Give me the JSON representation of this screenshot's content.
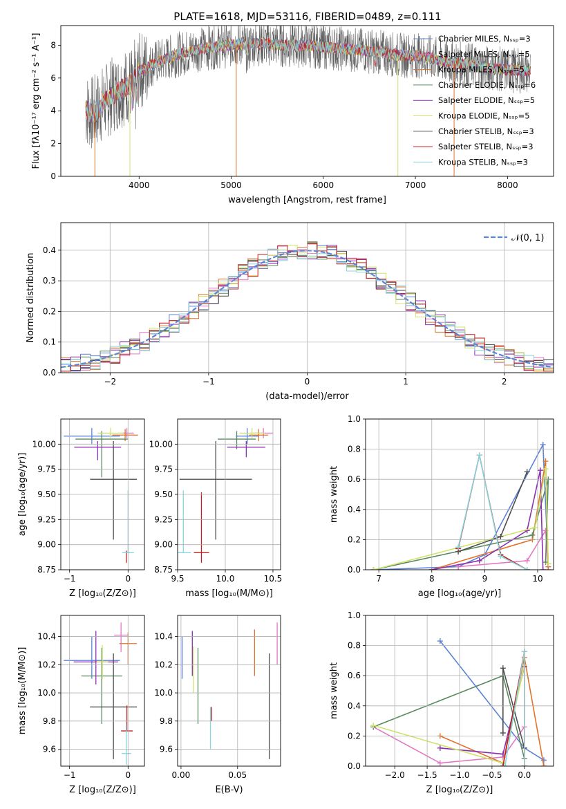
{
  "figure": {
    "title": "PLATE=1618, MJD=53116, FIBERID=0489, z=0.111"
  },
  "colors": [
    "#5b83d6",
    "#e377c2",
    "#e2722a",
    "#5a8a5f",
    "#8c2fb0",
    "#cfe36a",
    "#4d4d4d",
    "#c01f1f",
    "#86d6dd"
  ],
  "chart_data": [
    {
      "id": "spectrum",
      "type": "line",
      "xlabel": "wavelength [Angstrom, rest frame]",
      "ylabel": "Flux [f_λ 10^-17 erg cm^-2 s^-1 A^-1]",
      "xlim": [
        3150,
        8500
      ],
      "ylim": [
        0,
        9.2
      ],
      "xticks": [
        4000,
        5000,
        6000,
        7000,
        8000
      ],
      "yticks": [
        0,
        2,
        4,
        6,
        8
      ],
      "grid": false,
      "legend_position": "top-right",
      "series": [
        {
          "name": "Chabrier MILES, N_SSP=3"
        },
        {
          "name": "Salpeter MILES, N_SSP=5"
        },
        {
          "name": "Kroupa MILES, N_SSP=5"
        },
        {
          "name": "Chabrier ELODIE, N_SSP=6"
        },
        {
          "name": "Salpeter ELODIE, N_SSP=5"
        },
        {
          "name": "Kroupa ELODIE, N_SSP=5"
        },
        {
          "name": "Chabrier STELIB, N_SSP=3"
        },
        {
          "name": "Salpeter STELIB, N_SSP=3"
        },
        {
          "name": "Kroupa STELIB, N_SSP=3"
        }
      ],
      "continuum": {
        "x": [
          3420,
          3500,
          3600,
          3700,
          3800,
          3900,
          4000,
          4100,
          4200,
          4300,
          4400,
          4600,
          4800,
          5000,
          5200,
          5400,
          5600,
          5800,
          6000,
          6200,
          6400,
          6600,
          6800,
          7000,
          7200,
          7400,
          7600,
          7800,
          8000,
          8250
        ],
        "y": [
          4.1,
          3.8,
          4.4,
          4.9,
          5.3,
          5.6,
          6.4,
          6.7,
          7.0,
          7.2,
          7.4,
          7.7,
          7.9,
          8.0,
          8.1,
          8.1,
          8.0,
          8.0,
          7.9,
          7.8,
          7.7,
          7.6,
          7.4,
          7.4,
          7.2,
          6.9,
          6.8,
          6.6,
          6.5,
          6.4
        ]
      },
      "drops": [
        {
          "x": 3520,
          "series": 2
        },
        {
          "x": 3900,
          "series": 5
        },
        {
          "x": 5055,
          "series": 2
        },
        {
          "x": 6810,
          "series": 5
        },
        {
          "x": 7420,
          "series": 2
        }
      ]
    },
    {
      "id": "residual-histogram",
      "type": "bar",
      "xlabel": "(data-model)/error",
      "ylabel": "Normed distribution",
      "xlim": [
        -2.5,
        2.5
      ],
      "ylim": [
        0,
        0.49
      ],
      "xticks": [
        -2,
        -1,
        0,
        1,
        2
      ],
      "yticks": [
        0.0,
        0.1,
        0.2,
        0.3,
        0.4
      ],
      "grid": true,
      "legend_position": "top-right",
      "gaussian_label": "𝒩(0, 1)",
      "bin_width": 0.1
    },
    {
      "id": "age-vs-Z",
      "type": "scatter",
      "xlabel": "Z [log10(Z/Z⊙)]",
      "ylabel": "age [log10(age/yr)]",
      "xlim": [
        -1.15,
        0.28
      ],
      "ylim": [
        8.75,
        10.25
      ],
      "xticks": [
        -1,
        0
      ],
      "yticks": [
        8.75,
        9.0,
        9.25,
        9.5,
        9.75,
        10.0
      ],
      "grid": true,
      "points": [
        {
          "x": -0.62,
          "xerr": [
            0.48,
            0.48
          ],
          "y": 10.08,
          "yerr": [
            0.08,
            0.08
          ]
        },
        {
          "x": -0.02,
          "xerr": [
            0.12,
            0.12
          ],
          "y": 10.11,
          "yerr": [
            0.05,
            0.05
          ]
        },
        {
          "x": -0.05,
          "xerr": [
            0.22,
            0.22
          ],
          "y": 10.09,
          "yerr": [
            0.06,
            0.06
          ]
        },
        {
          "x": -0.45,
          "xerr": [
            0.45,
            0.45
          ],
          "y": 10.05,
          "yerr": [
            0.38,
            0.08
          ]
        },
        {
          "x": -0.52,
          "xerr": [
            0.4,
            0.4
          ],
          "y": 9.97,
          "yerr": [
            0.13,
            0.06
          ]
        },
        {
          "x": -0.3,
          "xerr": [
            0.22,
            0.22
          ],
          "y": 10.11,
          "yerr": [
            0.05,
            0.05
          ]
        },
        {
          "x": -0.25,
          "xerr": [
            0.4,
            0.4
          ],
          "y": 9.65,
          "yerr": [
            0.6,
            0.38
          ]
        },
        {
          "x": -0.03,
          "xerr": [
            0.04,
            0.04
          ],
          "y": 8.92,
          "yerr": [
            0.1,
            0.02
          ]
        },
        {
          "x": 0.0,
          "xerr": [
            0.1,
            0.1
          ],
          "y": 8.92,
          "yerr": [
            0.0,
            0.62
          ]
        }
      ]
    },
    {
      "id": "age-vs-mass",
      "type": "scatter",
      "xlabel": "mass [log10(M/M⊙)]",
      "ylabel": "",
      "xlim": [
        9.5,
        10.58
      ],
      "ylim": [
        8.75,
        10.25
      ],
      "xticks": [
        9.5,
        10.0,
        10.5
      ],
      "yticks": [
        8.75,
        9.0,
        9.25,
        9.5,
        9.75,
        10.0
      ],
      "grid": true,
      "points": [
        {
          "x": 10.23,
          "xerr": [
            0.12,
            0.12
          ],
          "y": 10.08,
          "yerr": [
            0.08,
            0.08
          ]
        },
        {
          "x": 10.4,
          "xerr": [
            0.1,
            0.1
          ],
          "y": 10.11,
          "yerr": [
            0.05,
            0.05
          ]
        },
        {
          "x": 10.35,
          "xerr": [
            0.1,
            0.1
          ],
          "y": 10.09,
          "yerr": [
            0.06,
            0.06
          ]
        },
        {
          "x": 10.12,
          "xerr": [
            0.2,
            0.2
          ],
          "y": 10.05,
          "yerr": [
            0.1,
            0.08
          ]
        },
        {
          "x": 10.22,
          "xerr": [
            0.2,
            0.2
          ],
          "y": 9.97,
          "yerr": [
            0.1,
            0.06
          ]
        },
        {
          "x": 10.28,
          "xerr": [
            0.13,
            0.13
          ],
          "y": 10.11,
          "yerr": [
            0.05,
            0.05
          ]
        },
        {
          "x": 9.9,
          "xerr": [
            0.38,
            0.38
          ],
          "y": 9.65,
          "yerr": [
            0.6,
            0.38
          ]
        },
        {
          "x": 9.75,
          "xerr": [
            0.08,
            0.08
          ],
          "y": 8.92,
          "yerr": [
            0.1,
            0.6
          ]
        },
        {
          "x": 9.56,
          "xerr": [
            0.08,
            0.08
          ],
          "y": 8.92,
          "yerr": [
            0.0,
            0.62
          ]
        }
      ]
    },
    {
      "id": "mass-weight-vs-age",
      "type": "line",
      "xlabel": "age [log10(age/yr)]",
      "ylabel": "mass weight",
      "xlim": [
        6.75,
        10.3
      ],
      "ylim": [
        0,
        1.0
      ],
      "xticks": [
        7,
        8,
        9,
        10
      ],
      "yticks": [
        0.0,
        0.2,
        0.4,
        0.6,
        0.8,
        1.0
      ],
      "grid": true,
      "series": [
        {
          "x": [
            6.9,
            8.5,
            9.0,
            10.1,
            10.2
          ],
          "y": [
            0.0,
            0.02,
            0.1,
            0.83,
            0.04
          ]
        },
        {
          "x": [
            8.5,
            9.8,
            10.15,
            10.2
          ],
          "y": [
            0.02,
            0.06,
            0.26,
            0.0
          ]
        },
        {
          "x": [
            8.0,
            9.9,
            10.15,
            10.2
          ],
          "y": [
            0.0,
            0.2,
            0.72,
            0.02
          ]
        },
        {
          "x": [
            6.9,
            9.9,
            10.2,
            10.15
          ],
          "y": [
            0.0,
            0.23,
            0.6,
            0.05
          ]
        },
        {
          "x": [
            8.0,
            8.9,
            9.8,
            10.05,
            10.1
          ],
          "y": [
            0.0,
            0.06,
            0.26,
            0.66,
            0.0
          ]
        },
        {
          "x": [
            6.9,
            9.95,
            10.15,
            10.2
          ],
          "y": [
            0.0,
            0.28,
            0.67,
            0.04
          ]
        },
        {
          "x": [
            8.5,
            9.3,
            9.8
          ],
          "y": [
            0.12,
            0.22,
            0.65
          ]
        },
        {
          "x": [
            8.5,
            8.9,
            9.3,
            9.8
          ],
          "y": [
            0.14,
            0.76,
            0.1,
            0.0
          ]
        },
        {
          "x": [
            8.5,
            8.9,
            9.3,
            9.8
          ],
          "y": [
            0.15,
            0.76,
            0.09,
            0.0
          ]
        }
      ]
    },
    {
      "id": "mass-vs-Z",
      "type": "scatter",
      "xlabel": "Z [log10(Z/Z⊙)]",
      "ylabel": "mass [log10(M/M⊙)]",
      "xlim": [
        -1.15,
        0.28
      ],
      "ylim": [
        9.48,
        10.55
      ],
      "xticks": [
        -1,
        0
      ],
      "yticks": [
        9.6,
        9.8,
        10.0,
        10.2,
        10.4
      ],
      "grid": true,
      "points": [
        {
          "x": -0.62,
          "xerr": [
            0.48,
            0.48
          ],
          "y": 10.23,
          "yerr": [
            0.13,
            0.17
          ]
        },
        {
          "x": -0.12,
          "xerr": [
            0.12,
            0.12
          ],
          "y": 10.41,
          "yerr": [
            0.12,
            0.09
          ]
        },
        {
          "x": 0.0,
          "xerr": [
            0.15,
            0.15
          ],
          "y": 10.35,
          "yerr": [
            0.15,
            0.08
          ]
        },
        {
          "x": -0.45,
          "xerr": [
            0.35,
            0.35
          ],
          "y": 10.12,
          "yerr": [
            0.34,
            0.2
          ]
        },
        {
          "x": -0.55,
          "xerr": [
            0.38,
            0.38
          ],
          "y": 10.22,
          "yerr": [
            0.16,
            0.22
          ]
        },
        {
          "x": -0.44,
          "xerr": [
            0.1,
            0.1
          ],
          "y": 10.22,
          "yerr": [
            0.12,
            0.12
          ]
        },
        {
          "x": -0.25,
          "xerr": [
            0.4,
            0.4
          ],
          "y": 9.9,
          "yerr": [
            0.37,
            0.38
          ]
        },
        {
          "x": -0.02,
          "xerr": [
            0.1,
            0.1
          ],
          "y": 9.73,
          "yerr": [
            0.0,
            0.18
          ]
        },
        {
          "x": -0.03,
          "xerr": [
            0.08,
            0.08
          ],
          "y": 9.57,
          "yerr": [
            0.08,
            0.2
          ]
        }
      ]
    },
    {
      "id": "mass-vs-ebv",
      "type": "scatter",
      "xlabel": "E(B-V)",
      "ylabel": "",
      "xlim": [
        -0.003,
        0.088
      ],
      "ylim": [
        9.48,
        10.55
      ],
      "xticks": [
        0.0,
        0.05
      ],
      "xtick_labels": [
        "0.00",
        "0.05"
      ],
      "yticks": [
        9.6,
        9.8,
        10.0,
        10.2,
        10.4
      ],
      "grid": true,
      "points": [
        {
          "x": 0.001,
          "y": 10.23,
          "yerr": [
            0.13,
            0.17
          ]
        },
        {
          "x": 0.085,
          "y": 10.35,
          "yerr": [
            0.15,
            0.15
          ]
        },
        {
          "x": 0.065,
          "y": 10.28,
          "yerr": [
            0.16,
            0.17
          ]
        },
        {
          "x": 0.015,
          "y": 10.12,
          "yerr": [
            0.34,
            0.2
          ]
        },
        {
          "x": 0.01,
          "y": 10.22,
          "yerr": [
            0.1,
            0.22
          ]
        },
        {
          "x": 0.011,
          "y": 10.15,
          "yerr": [
            0.15,
            0.18
          ]
        },
        {
          "x": 0.078,
          "y": 9.9,
          "yerr": [
            0.37,
            0.38
          ]
        },
        {
          "x": 0.027,
          "y": 9.8,
          "yerr": [
            0.0,
            0.1
          ]
        },
        {
          "x": 0.026,
          "y": 9.7,
          "yerr": [
            0.1,
            0.2
          ]
        }
      ]
    },
    {
      "id": "mass-weight-vs-Z",
      "type": "line",
      "xlabel": "Z [log10(Z/Z⊙)]",
      "ylabel": "mass weight",
      "xlim": [
        -2.45,
        0.45
      ],
      "ylim": [
        0,
        1.0
      ],
      "xticks": [
        -2.0,
        -1.5,
        -1.0,
        -0.5,
        0.0
      ],
      "yticks": [
        0.0,
        0.2,
        0.4,
        0.6,
        0.8,
        1.0
      ],
      "grid": true,
      "series": [
        {
          "x": [
            -1.3,
            0.0,
            0.3
          ],
          "y": [
            0.83,
            0.12,
            0.04
          ]
        },
        {
          "x": [
            -2.33,
            -1.3,
            -0.33,
            0.0
          ],
          "y": [
            0.26,
            0.02,
            0.06,
            0.26
          ]
        },
        {
          "x": [
            -1.3,
            -0.33,
            0.0,
            0.3
          ],
          "y": [
            0.2,
            0.02,
            0.72,
            0.0
          ]
        },
        {
          "x": [
            -2.33,
            -0.33,
            0.0
          ],
          "y": [
            0.26,
            0.6,
            0.05
          ]
        },
        {
          "x": [
            -1.3,
            -0.33,
            0.0
          ],
          "y": [
            0.12,
            0.08,
            0.66
          ]
        },
        {
          "x": [
            -2.33,
            -0.33,
            0.0
          ],
          "y": [
            0.27,
            0.02,
            0.67
          ]
        },
        {
          "x": [
            -0.33,
            -0.33,
            0.0
          ],
          "y": [
            0.22,
            0.65,
            0.12
          ]
        },
        {
          "x": [
            -0.33,
            0.0,
            0.0
          ],
          "y": [
            0.0,
            0.76,
            0.0
          ]
        },
        {
          "x": [
            -0.3,
            0.0,
            0.0
          ],
          "y": [
            0.0,
            0.76,
            0.0
          ]
        }
      ]
    }
  ]
}
